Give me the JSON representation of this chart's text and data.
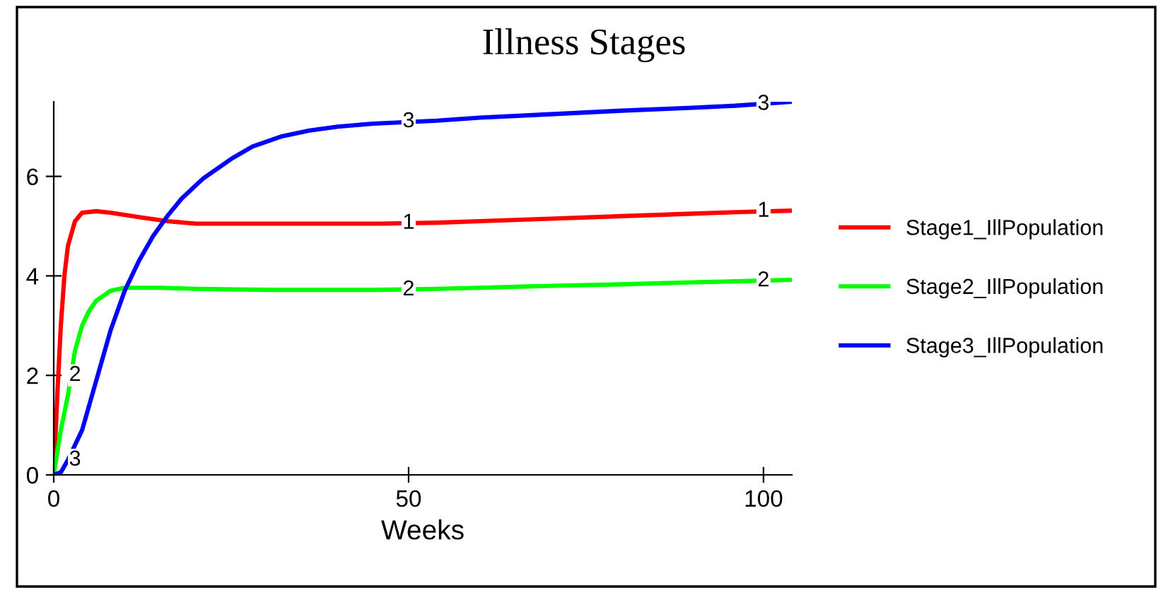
{
  "chart_data": {
    "type": "line",
    "title": "Illness Stages",
    "xlabel": "Weeks",
    "xlim": [
      0,
      104
    ],
    "ylim": [
      0,
      7.5
    ],
    "xticks": [
      0,
      50,
      100
    ],
    "yticks": [
      0,
      2,
      4,
      6
    ],
    "grid": false,
    "legend": "right",
    "line_style": "solid",
    "marker": "none",
    "series": [
      {
        "name": "Stage1_IllPopulation",
        "color": "#ff0000",
        "x": [
          0,
          0.5,
          1,
          1.5,
          2,
          3,
          4,
          6,
          8,
          12,
          16,
          20,
          30,
          40,
          46,
          54,
          60,
          70,
          80,
          90,
          96,
          104
        ],
        "values": [
          0,
          1.6,
          3.0,
          4.0,
          4.6,
          5.1,
          5.27,
          5.3,
          5.27,
          5.18,
          5.1,
          5.05,
          5.05,
          5.05,
          5.05,
          5.07,
          5.1,
          5.15,
          5.2,
          5.25,
          5.28,
          5.31
        ]
      },
      {
        "name": "Stage2_IllPopulation",
        "color": "#00ff00",
        "x": [
          0,
          1,
          2,
          3,
          4,
          5,
          6,
          8,
          10,
          15,
          20,
          30,
          40,
          46,
          54,
          60,
          70,
          80,
          90,
          96,
          104
        ],
        "values": [
          0,
          0.9,
          1.6,
          2.5,
          3.0,
          3.3,
          3.5,
          3.7,
          3.76,
          3.76,
          3.74,
          3.72,
          3.72,
          3.72,
          3.74,
          3.76,
          3.8,
          3.83,
          3.87,
          3.89,
          3.92
        ]
      },
      {
        "name": "Stage3_IllPopulation",
        "color": "#0000ff",
        "x": [
          0,
          1,
          2,
          4,
          6,
          8,
          10,
          12,
          14,
          16,
          18,
          21,
          25,
          28,
          32,
          36,
          40,
          45,
          54,
          60,
          70,
          80,
          90,
          96,
          104
        ],
        "values": [
          0,
          0.05,
          0.3,
          0.9,
          1.9,
          2.9,
          3.7,
          4.3,
          4.8,
          5.2,
          5.55,
          5.95,
          6.35,
          6.6,
          6.8,
          6.92,
          7.0,
          7.06,
          7.12,
          7.18,
          7.25,
          7.32,
          7.38,
          7.42,
          7.5
        ]
      }
    ],
    "annotations": [
      {
        "text": "1",
        "x": 50,
        "y": 5.06
      },
      {
        "text": "1",
        "x": 100,
        "y": 5.3
      },
      {
        "text": "2",
        "x": 3,
        "y": 2.0
      },
      {
        "text": "2",
        "x": 50,
        "y": 3.72
      },
      {
        "text": "2",
        "x": 100,
        "y": 3.9
      },
      {
        "text": "3",
        "x": 3,
        "y": 0.3
      },
      {
        "text": "3",
        "x": 50,
        "y": 7.1
      },
      {
        "text": "3",
        "x": 100,
        "y": 7.45
      }
    ]
  }
}
